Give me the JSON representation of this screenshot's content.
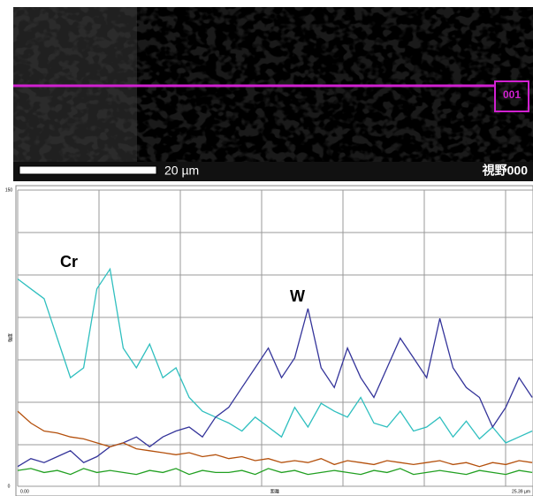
{
  "image": {
    "line_label": "001",
    "scale_bar": "20 µm",
    "field_label": "視野000"
  },
  "chart_data": {
    "type": "line",
    "x_label": "距離",
    "y_label": "強度",
    "x": [
      0,
      0.65,
      1.3,
      1.95,
      2.6,
      3.25,
      3.9,
      4.55,
      5.2,
      5.85,
      6.5,
      7.15,
      7.8,
      8.45,
      9.1,
      9.75,
      10.4,
      11.05,
      11.7,
      12.35,
      13,
      13.65,
      14.3,
      14.95,
      15.6,
      16.25,
      16.9,
      17.55,
      18.2,
      18.85,
      19.5,
      20.15,
      20.8,
      21.45,
      22.1,
      22.75,
      23.4,
      24.05,
      24.7,
      25.35
    ],
    "xlim": [
      0,
      25.39
    ],
    "xticks": [
      {
        "value": 0,
        "label": "0.00"
      },
      {
        "value": 25.39,
        "label": "25.39 µm"
      }
    ],
    "ylim": [
      0,
      150
    ],
    "yticks": [
      0,
      150
    ],
    "grid": true,
    "series": [
      {
        "name": "Cr",
        "color": "#2fbfbf",
        "values": [
          105,
          100,
          95,
          75,
          55,
          60,
          100,
          110,
          70,
          60,
          72,
          55,
          60,
          45,
          38,
          35,
          32,
          28,
          35,
          30,
          25,
          40,
          30,
          42,
          38,
          35,
          45,
          32,
          30,
          38,
          28,
          30,
          35,
          25,
          33,
          24,
          30,
          22,
          25,
          28
        ]
      },
      {
        "name": "W",
        "color": "#34349a",
        "values": [
          10,
          14,
          12,
          15,
          18,
          12,
          15,
          20,
          22,
          25,
          20,
          25,
          28,
          30,
          25,
          35,
          40,
          50,
          60,
          70,
          55,
          65,
          90,
          60,
          50,
          70,
          55,
          45,
          60,
          75,
          65,
          55,
          85,
          60,
          50,
          45,
          30,
          40,
          55,
          45
        ]
      },
      {
        "color": "#b4500c",
        "values": [
          38,
          32,
          28,
          27,
          25,
          24,
          22,
          20,
          22,
          19,
          18,
          17,
          16,
          17,
          15,
          16,
          14,
          15,
          13,
          14,
          12,
          13,
          12,
          14,
          11,
          13,
          12,
          11,
          13,
          12,
          11,
          12,
          13,
          11,
          12,
          10,
          12,
          11,
          13,
          12
        ]
      },
      {
        "color": "#22a022",
        "values": [
          8,
          9,
          7,
          8,
          6,
          9,
          7,
          8,
          7,
          6,
          8,
          7,
          9,
          6,
          8,
          7,
          7,
          8,
          6,
          9,
          7,
          8,
          6,
          7,
          8,
          7,
          6,
          8,
          7,
          9,
          6,
          7,
          8,
          7,
          6,
          8,
          7,
          6,
          8,
          7
        ]
      }
    ]
  }
}
